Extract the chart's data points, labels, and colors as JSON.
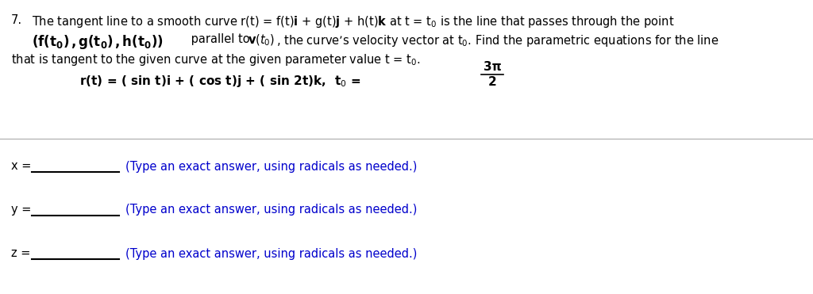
{
  "background_color": "#ffffff",
  "text_color": "#000000",
  "hint_color": "#0000cc",
  "underline_color": "#000000",
  "divider_color": "#aaaaaa",
  "font_size_main": 10.5,
  "font_size_curve": 11.0,
  "font_size_hint": 10.5,
  "number": "7.",
  "hint": "(Type an exact answer, using radicals as needed.)",
  "fraction_num": "3π",
  "fraction_den": "2"
}
